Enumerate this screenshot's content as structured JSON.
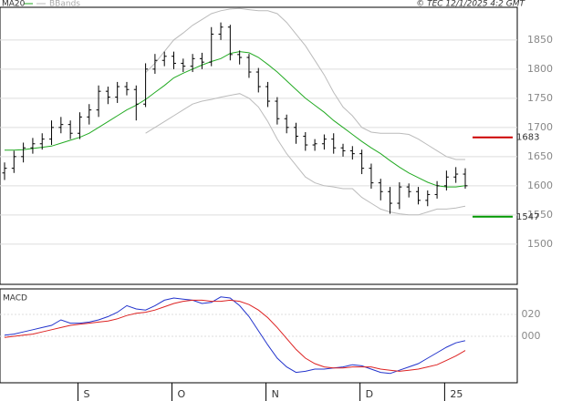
{
  "chart_data": [
    {
      "type": "ohlc",
      "copyright": "© TEC 12/1/2025 4:2 GMT",
      "categories": [
        null,
        null,
        null,
        null,
        null,
        null,
        null,
        null,
        "S",
        null,
        null,
        null,
        null,
        null,
        null,
        null,
        null,
        null,
        "O",
        null,
        null,
        null,
        null,
        null,
        null,
        null,
        null,
        null,
        "N",
        null,
        null,
        null,
        null,
        null,
        null,
        null,
        null,
        null,
        "D",
        null,
        null,
        null,
        null,
        null,
        null,
        null,
        null,
        "25",
        null,
        null
      ],
      "color": "#000000",
      "open": [
        1622,
        1630,
        1650,
        1665,
        1672,
        1680,
        1700,
        1705,
        1690,
        1718,
        1730,
        1762,
        1752,
        1770,
        1765,
        1740,
        1800,
        1815,
        1822,
        1810,
        1805,
        1818,
        1812,
        1860,
        1872,
        1825,
        1820,
        1795,
        1770,
        1745,
        1715,
        1700,
        1685,
        1670,
        1672,
        1680,
        1665,
        1660,
        1655,
        1630,
        1605,
        1590,
        1570,
        1598,
        1590,
        1575,
        1585,
        1600,
        1615,
        1620
      ],
      "high": [
        1640,
        1660,
        1674,
        1682,
        1690,
        1712,
        1718,
        1712,
        1726,
        1740,
        1772,
        1770,
        1778,
        1778,
        1772,
        1810,
        1826,
        1830,
        1830,
        1818,
        1826,
        1828,
        1872,
        1880,
        1876,
        1832,
        1826,
        1802,
        1778,
        1752,
        1722,
        1708,
        1692,
        1680,
        1688,
        1690,
        1672,
        1668,
        1662,
        1638,
        1612,
        1598,
        1606,
        1604,
        1598,
        1592,
        1608,
        1626,
        1632,
        1630
      ],
      "low": [
        1610,
        1622,
        1640,
        1655,
        1662,
        1670,
        1690,
        1680,
        1680,
        1705,
        1718,
        1740,
        1742,
        1755,
        1712,
        1735,
        1792,
        1805,
        1800,
        1795,
        1795,
        1800,
        1805,
        1850,
        1815,
        1808,
        1785,
        1760,
        1735,
        1705,
        1690,
        1672,
        1660,
        1660,
        1662,
        1655,
        1650,
        1645,
        1620,
        1595,
        1575,
        1552,
        1560,
        1580,
        1568,
        1565,
        1578,
        1592,
        1605,
        1595
      ],
      "close": [
        1630,
        1650,
        1665,
        1672,
        1680,
        1700,
        1705,
        1690,
        1718,
        1730,
        1762,
        1752,
        1770,
        1765,
        1740,
        1800,
        1815,
        1822,
        1810,
        1805,
        1818,
        1812,
        1860,
        1872,
        1825,
        1820,
        1795,
        1770,
        1745,
        1715,
        1700,
        1685,
        1670,
        1672,
        1680,
        1665,
        1660,
        1655,
        1630,
        1605,
        1590,
        1570,
        1598,
        1590,
        1575,
        1585,
        1600,
        1615,
        1620,
        1600
      ],
      "overlays": [
        {
          "name": "MA20",
          "color": "#22aa22",
          "values": [
            1661,
            1661,
            1662,
            1664,
            1666,
            1668,
            1673,
            1678,
            1683,
            1690,
            1700,
            1710,
            1720,
            1730,
            1738,
            1748,
            1760,
            1772,
            1785,
            1793,
            1800,
            1807,
            1813,
            1818,
            1827,
            1830,
            1828,
            1820,
            1808,
            1795,
            1780,
            1765,
            1750,
            1738,
            1726,
            1712,
            1700,
            1688,
            1676,
            1665,
            1655,
            1643,
            1632,
            1622,
            1614,
            1606,
            1600,
            1598,
            1598,
            1600
          ]
        },
        {
          "name": "BBands",
          "color": "#bbbbbb",
          "upper": [
            null,
            null,
            null,
            null,
            null,
            null,
            null,
            null,
            null,
            null,
            null,
            null,
            null,
            null,
            null,
            1794,
            1810,
            1830,
            1850,
            1862,
            1875,
            1885,
            1895,
            1900,
            1903,
            1904,
            1902,
            1900,
            1900,
            1895,
            1880,
            1860,
            1840,
            1815,
            1790,
            1760,
            1735,
            1720,
            1700,
            1692,
            1690,
            1690,
            1690,
            1688,
            1680,
            1670,
            1660,
            1650,
            1645,
            1645
          ],
          "lower": [
            null,
            null,
            null,
            null,
            null,
            null,
            null,
            null,
            null,
            null,
            null,
            null,
            null,
            null,
            null,
            1690,
            1700,
            1710,
            1720,
            1730,
            1740,
            1745,
            1748,
            1752,
            1755,
            1758,
            1750,
            1735,
            1710,
            1680,
            1655,
            1635,
            1615,
            1605,
            1600,
            1598,
            1595,
            1595,
            1580,
            1570,
            1560,
            1555,
            1552,
            1550,
            1550,
            1555,
            1560,
            1560,
            1562,
            1565
          ]
        }
      ],
      "levels": [
        {
          "value": 1683,
          "color": "#cc0000"
        },
        {
          "value": 1547,
          "color": "#009900"
        }
      ],
      "ylim": [
        1431,
        1906
      ],
      "yticks": [
        1500,
        1550,
        1600,
        1650,
        1700,
        1750,
        1800,
        1850
      ],
      "grid": true
    },
    {
      "type": "line",
      "title": "MACD",
      "series": [
        {
          "color": "#2233cc",
          "values": [
            1,
            2,
            4,
            6,
            8,
            10,
            15,
            12,
            12,
            13,
            15,
            18,
            22,
            28,
            25,
            24,
            28,
            33,
            35,
            34,
            33,
            30,
            31,
            36,
            35,
            28,
            18,
            5,
            -8,
            -20,
            -28,
            -33,
            -32,
            -30,
            -30,
            -29,
            -28,
            -26,
            -27,
            -30,
            -33,
            -34,
            -31,
            -28,
            -25,
            -20,
            -15,
            -10,
            -6,
            -4
          ]
        },
        {
          "color": "#dd2222",
          "values": [
            -1,
            0,
            1,
            2,
            4,
            6,
            8,
            10,
            11,
            12,
            13,
            14,
            16,
            19,
            21,
            22,
            24,
            27,
            30,
            32,
            33,
            33,
            32,
            32,
            33,
            32,
            29,
            24,
            17,
            8,
            -2,
            -12,
            -20,
            -25,
            -28,
            -29,
            -29,
            -28,
            -28,
            -28,
            -30,
            -31,
            -32,
            -31,
            -30,
            -28,
            -26,
            -22,
            -18,
            -13
          ]
        }
      ],
      "ylim": [
        -42.5,
        43.3
      ],
      "yticks": [
        {
          "value": 20,
          "label": "020"
        },
        {
          "value": 0,
          "label": "000"
        }
      ],
      "grid": true
    }
  ]
}
